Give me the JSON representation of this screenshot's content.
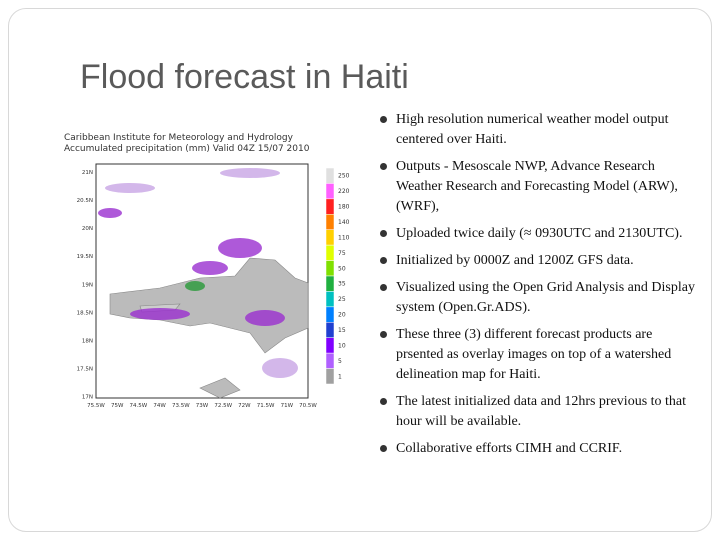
{
  "slide": {
    "title": "Flood forecast in Haiti",
    "figure": {
      "heading": [
        "Caribbean Institute for Meteorology and Hydrology",
        "Accumulated precipitation (mm) Valid 04Z 15/07 2010"
      ],
      "colorbar_labels": [
        "250",
        "220",
        "180",
        "140",
        "110",
        "75",
        "50",
        "35",
        "25",
        "20",
        "15",
        "10",
        "5",
        "1"
      ],
      "lat_labels": [
        "21N",
        "20.5N",
        "20N",
        "19.5N",
        "19N",
        "18.5N",
        "18N",
        "17.5N",
        "17N"
      ],
      "lon_labels": [
        "75.5W",
        "75W",
        "74.5W",
        "74W",
        "73.5W",
        "73W",
        "72.5W",
        "72W",
        "71.5W",
        "71W",
        "70.5W"
      ]
    },
    "bullets": [
      "High resolution numerical weather model output centered over Haiti.",
      "Outputs - Mesoscale NWP, Advance Research Weather Research and Forecasting Model (ARW), (WRF),",
      "Uploaded twice daily (≈ 0930UTC and 2130UTC).",
      "Initialized by 0000Z and 1200Z GFS data.",
      "Visualized using the Open Grid Analysis and Display system (Open.Gr.ADS).",
      "These three (3) different forecast products are prsented as overlay images on top of a watershed delineation map for Haiti.",
      "The latest initialized data and 12hrs previous to that hour will be available.",
      "Collaborative efforts CIMH and CCRIF."
    ]
  }
}
